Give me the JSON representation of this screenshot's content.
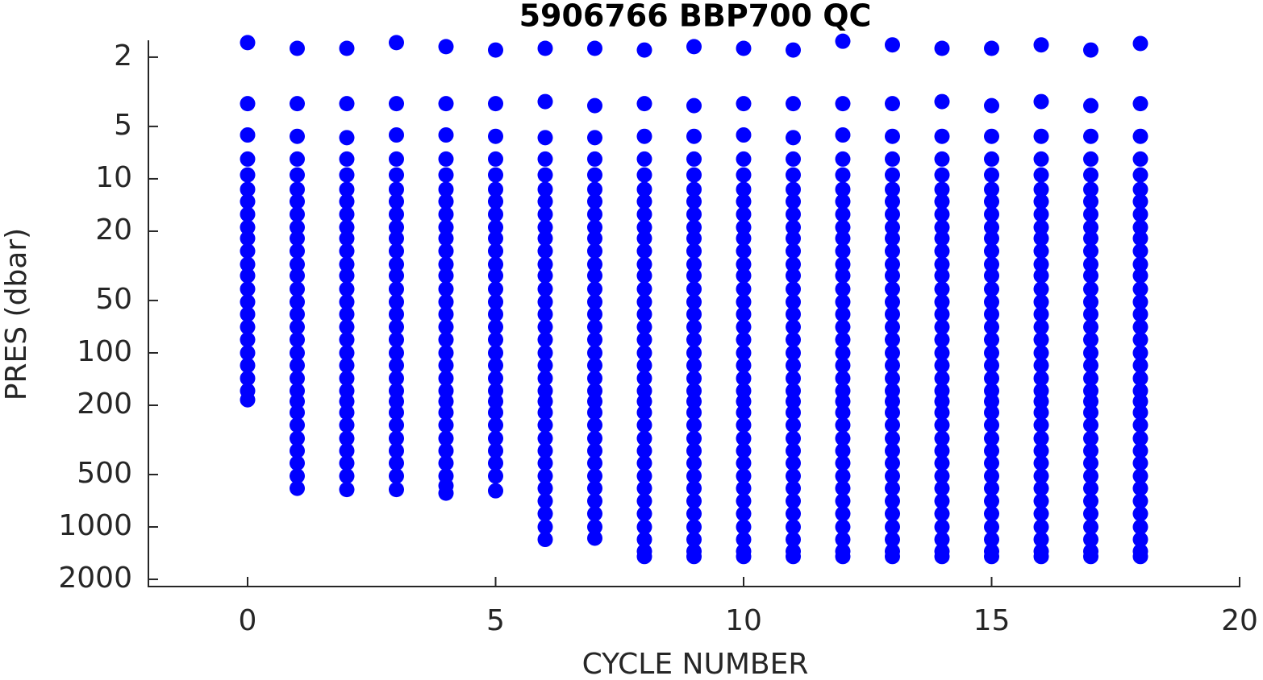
{
  "chart_data": {
    "type": "scatter",
    "title": "5906766 BBP700 QC",
    "x_label": "CYCLE NUMBER",
    "y_label": "PRES (dbar)",
    "color": "#0000ff",
    "xlim": [
      -2,
      20
    ],
    "xticks": [
      0,
      5,
      10,
      15,
      20
    ],
    "ylim": [
      1.6,
      2200
    ],
    "y_log": true,
    "y_reversed": true,
    "yticks": [
      2,
      5,
      10,
      20,
      50,
      100,
      200,
      500,
      1000,
      2000
    ],
    "profiles": [
      {
        "cycle": 0,
        "pres": [
          1.65,
          3.7,
          5.6,
          7.7,
          9.5,
          11.5,
          13.5,
          16,
          19,
          22,
          26,
          31,
          36,
          43,
          51,
          60,
          71,
          84,
          100,
          118,
          140,
          165,
          186
        ]
      },
      {
        "cycle": 1,
        "pres": [
          1.78,
          3.7,
          5.7,
          7.7,
          9.5,
          11.5,
          13.5,
          16,
          19,
          22,
          26,
          31,
          36,
          43,
          51,
          60,
          71,
          84,
          100,
          118,
          140,
          165,
          190,
          220,
          260,
          310,
          365,
          430,
          510,
          600
        ]
      },
      {
        "cycle": 2,
        "pres": [
          1.78,
          3.7,
          5.8,
          7.7,
          9.5,
          11.5,
          13.5,
          16,
          19,
          22,
          26,
          31,
          36,
          43,
          51,
          60,
          71,
          84,
          100,
          118,
          140,
          165,
          190,
          220,
          260,
          310,
          365,
          430,
          510,
          610
        ]
      },
      {
        "cycle": 3,
        "pres": [
          1.65,
          3.7,
          5.6,
          7.7,
          9.5,
          11.5,
          13.5,
          16,
          19,
          22,
          26,
          31,
          36,
          43,
          51,
          60,
          71,
          84,
          100,
          118,
          140,
          165,
          190,
          220,
          260,
          310,
          365,
          430,
          510,
          610
        ]
      },
      {
        "cycle": 4,
        "pres": [
          1.74,
          3.7,
          5.6,
          7.7,
          9.5,
          11.5,
          13.5,
          16,
          19,
          22,
          26,
          31,
          36,
          43,
          51,
          60,
          71,
          84,
          100,
          118,
          140,
          165,
          190,
          220,
          260,
          310,
          365,
          430,
          510,
          580,
          640
        ]
      },
      {
        "cycle": 5,
        "pres": [
          1.82,
          3.7,
          5.7,
          7.7,
          9.5,
          11.5,
          13.5,
          16,
          19,
          22,
          26,
          31,
          36,
          43,
          51,
          60,
          71,
          84,
          100,
          118,
          140,
          165,
          190,
          220,
          260,
          310,
          365,
          430,
          510,
          620
        ]
      },
      {
        "cycle": 6,
        "pres": [
          1.78,
          3.6,
          5.8,
          7.7,
          9.5,
          11.5,
          13.5,
          16,
          19,
          22,
          26,
          31,
          36,
          43,
          51,
          60,
          71,
          84,
          100,
          118,
          140,
          165,
          190,
          220,
          260,
          310,
          365,
          430,
          510,
          600,
          710,
          840,
          1000,
          1180
        ]
      },
      {
        "cycle": 7,
        "pres": [
          1.78,
          3.8,
          5.8,
          7.7,
          9.5,
          11.5,
          13.5,
          16,
          19,
          22,
          26,
          31,
          36,
          43,
          51,
          60,
          71,
          84,
          100,
          118,
          140,
          165,
          190,
          220,
          260,
          310,
          365,
          430,
          510,
          600,
          710,
          840,
          1000,
          1160
        ]
      },
      {
        "cycle": 8,
        "pres": [
          1.82,
          3.7,
          5.7,
          7.7,
          9.5,
          11.5,
          13.5,
          16,
          19,
          22,
          26,
          31,
          36,
          43,
          51,
          60,
          71,
          84,
          100,
          118,
          140,
          165,
          190,
          220,
          260,
          310,
          365,
          430,
          510,
          600,
          710,
          840,
          1000,
          1180,
          1380,
          1480
        ]
      },
      {
        "cycle": 9,
        "pres": [
          1.74,
          3.8,
          5.7,
          7.7,
          9.5,
          11.5,
          13.5,
          16,
          19,
          22,
          26,
          31,
          36,
          43,
          51,
          60,
          71,
          84,
          100,
          118,
          140,
          165,
          190,
          220,
          260,
          310,
          365,
          430,
          510,
          600,
          710,
          840,
          1000,
          1180,
          1380,
          1480
        ]
      },
      {
        "cycle": 10,
        "pres": [
          1.78,
          3.7,
          5.6,
          7.7,
          9.5,
          11.5,
          13.5,
          16,
          19,
          22,
          26,
          31,
          36,
          43,
          51,
          60,
          71,
          84,
          100,
          118,
          140,
          165,
          190,
          220,
          260,
          310,
          365,
          430,
          510,
          600,
          710,
          840,
          1000,
          1180,
          1380,
          1480
        ]
      },
      {
        "cycle": 11,
        "pres": [
          1.82,
          3.7,
          5.8,
          7.7,
          9.5,
          11.5,
          13.5,
          16,
          19,
          22,
          26,
          31,
          36,
          43,
          51,
          60,
          71,
          84,
          100,
          118,
          140,
          165,
          190,
          220,
          260,
          310,
          365,
          430,
          510,
          600,
          710,
          840,
          1000,
          1180,
          1380,
          1480
        ]
      },
      {
        "cycle": 12,
        "pres": [
          1.62,
          3.7,
          5.6,
          7.7,
          9.5,
          11.5,
          13.5,
          16,
          19,
          22,
          26,
          31,
          36,
          43,
          51,
          60,
          71,
          84,
          100,
          118,
          140,
          165,
          190,
          220,
          260,
          310,
          365,
          430,
          510,
          600,
          710,
          840,
          1000,
          1180,
          1380,
          1480
        ]
      },
      {
        "cycle": 13,
        "pres": [
          1.7,
          3.7,
          5.7,
          7.7,
          9.5,
          11.5,
          13.5,
          16,
          19,
          22,
          26,
          31,
          36,
          43,
          51,
          60,
          71,
          84,
          100,
          118,
          140,
          165,
          190,
          220,
          260,
          310,
          365,
          430,
          510,
          600,
          710,
          840,
          1000,
          1180,
          1380,
          1480
        ]
      },
      {
        "cycle": 14,
        "pres": [
          1.78,
          3.6,
          5.7,
          7.7,
          9.5,
          11.5,
          13.5,
          16,
          19,
          22,
          26,
          31,
          36,
          43,
          51,
          60,
          71,
          84,
          100,
          118,
          140,
          165,
          190,
          220,
          260,
          310,
          365,
          430,
          510,
          600,
          710,
          840,
          1000,
          1180,
          1380,
          1480
        ]
      },
      {
        "cycle": 15,
        "pres": [
          1.78,
          3.8,
          5.7,
          7.7,
          9.5,
          11.5,
          13.5,
          16,
          19,
          22,
          26,
          31,
          36,
          43,
          51,
          60,
          71,
          84,
          100,
          118,
          140,
          165,
          190,
          220,
          260,
          310,
          365,
          430,
          510,
          600,
          710,
          840,
          1000,
          1180,
          1380,
          1480
        ]
      },
      {
        "cycle": 16,
        "pres": [
          1.7,
          3.6,
          5.7,
          7.7,
          9.5,
          11.5,
          13.5,
          16,
          19,
          22,
          26,
          31,
          36,
          43,
          51,
          60,
          71,
          84,
          100,
          118,
          140,
          165,
          190,
          220,
          260,
          310,
          365,
          430,
          510,
          600,
          710,
          840,
          1000,
          1180,
          1380,
          1480
        ]
      },
      {
        "cycle": 17,
        "pres": [
          1.82,
          3.8,
          5.7,
          7.7,
          9.5,
          11.5,
          13.5,
          16,
          19,
          22,
          26,
          31,
          36,
          43,
          51,
          60,
          71,
          84,
          100,
          118,
          140,
          165,
          190,
          220,
          260,
          310,
          365,
          430,
          510,
          600,
          710,
          840,
          1000,
          1180,
          1380,
          1480
        ]
      },
      {
        "cycle": 18,
        "pres": [
          1.67,
          3.7,
          5.7,
          7.7,
          9.5,
          11.5,
          13.5,
          16,
          19,
          22,
          26,
          31,
          36,
          43,
          51,
          60,
          71,
          84,
          100,
          118,
          140,
          165,
          190,
          220,
          260,
          310,
          365,
          430,
          510,
          600,
          710,
          840,
          1000,
          1180,
          1380,
          1480
        ]
      }
    ]
  }
}
